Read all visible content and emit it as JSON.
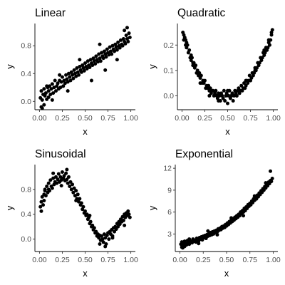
{
  "colors": {
    "background": "#ffffff",
    "point": "#000000",
    "axis": "#000000",
    "tick_text": "#4d4d4d"
  },
  "chart_data": [
    {
      "type": "scatter",
      "title": "Linear",
      "xlabel": "x",
      "ylabel": "y",
      "grid": false,
      "legend": "none",
      "xlim": [
        -0.05,
        1.05
      ],
      "ylim": [
        -0.12,
        1.12
      ],
      "xticks": [
        0.0,
        0.25,
        0.5,
        0.75,
        1.0
      ],
      "xtick_labels": [
        "0.00",
        "0.25",
        "0.50",
        "0.75",
        "1.00"
      ],
      "yticks": [
        0.0,
        0.4,
        0.8
      ],
      "ytick_labels": [
        "0.0",
        "0.4",
        "0.8"
      ],
      "series": [
        {
          "x": [
            0.01,
            0.02,
            0.02,
            0.03,
            0.04,
            0.05,
            0.05,
            0.06,
            0.07,
            0.08,
            0.09,
            0.1,
            0.1,
            0.11,
            0.12,
            0.13,
            0.14,
            0.15,
            0.16,
            0.17,
            0.18,
            0.19,
            0.2,
            0.21,
            0.22,
            0.23,
            0.24,
            0.25,
            0.26,
            0.27,
            0.28,
            0.29,
            0.3,
            0.31,
            0.32,
            0.33,
            0.34,
            0.35,
            0.36,
            0.37,
            0.38,
            0.39,
            0.4,
            0.41,
            0.42,
            0.43,
            0.44,
            0.45,
            0.46,
            0.47,
            0.48,
            0.49,
            0.5,
            0.51,
            0.52,
            0.53,
            0.54,
            0.55,
            0.56,
            0.57,
            0.58,
            0.59,
            0.6,
            0.61,
            0.62,
            0.63,
            0.64,
            0.65,
            0.66,
            0.67,
            0.68,
            0.69,
            0.7,
            0.71,
            0.72,
            0.73,
            0.74,
            0.75,
            0.76,
            0.77,
            0.78,
            0.79,
            0.8,
            0.81,
            0.82,
            0.83,
            0.84,
            0.85,
            0.86,
            0.87,
            0.88,
            0.89,
            0.9,
            0.91,
            0.92,
            0.93,
            0.94,
            0.95,
            0.96,
            0.97,
            0.98,
            0.99,
            0.03,
            0.08,
            0.14,
            0.22,
            0.31,
            0.44,
            0.57,
            0.66,
            0.72,
            0.85,
            0.93,
            0.96
          ],
          "y": [
            0.05,
            -0.08,
            0.15,
            0.02,
            0.1,
            -0.05,
            0.18,
            0.08,
            0.12,
            0.03,
            0.2,
            0.15,
            0.06,
            0.22,
            0.1,
            0.18,
            0.25,
            0.12,
            0.2,
            0.3,
            0.15,
            0.22,
            0.26,
            0.18,
            0.3,
            0.2,
            0.28,
            0.35,
            0.22,
            0.3,
            0.26,
            0.38,
            0.32,
            0.28,
            0.4,
            0.35,
            0.3,
            0.42,
            0.38,
            0.33,
            0.45,
            0.4,
            0.36,
            0.48,
            0.42,
            0.38,
            0.5,
            0.45,
            0.42,
            0.52,
            0.48,
            0.44,
            0.55,
            0.5,
            0.47,
            0.58,
            0.52,
            0.49,
            0.6,
            0.55,
            0.52,
            0.62,
            0.58,
            0.54,
            0.65,
            0.6,
            0.57,
            0.68,
            0.62,
            0.58,
            0.7,
            0.65,
            0.62,
            0.72,
            0.68,
            0.64,
            0.75,
            0.7,
            0.67,
            0.78,
            0.72,
            0.68,
            0.8,
            0.75,
            0.72,
            0.82,
            0.78,
            0.74,
            0.85,
            0.8,
            0.77,
            0.88,
            0.82,
            0.8,
            0.9,
            0.86,
            0.83,
            0.95,
            0.9,
            0.86,
            0.98,
            0.92,
            -0.1,
            0.22,
            0.02,
            0.38,
            0.15,
            0.6,
            0.3,
            0.82,
            0.45,
            0.6,
            1.02,
            1.06
          ]
        }
      ]
    },
    {
      "type": "scatter",
      "title": "Quadratic",
      "xlabel": "x",
      "ylabel": "y",
      "grid": false,
      "legend": "none",
      "xlim": [
        -0.05,
        1.05
      ],
      "ylim": [
        -0.055,
        0.285
      ],
      "xticks": [
        0.0,
        0.25,
        0.5,
        0.75,
        1.0
      ],
      "xtick_labels": [
        "0.00",
        "0.25",
        "0.50",
        "0.75",
        "1.00"
      ],
      "yticks": [
        0.0,
        0.1,
        0.2
      ],
      "ytick_labels": [
        "0.0",
        "0.1",
        "0.2"
      ],
      "series": [
        {
          "x": [
            0.01,
            0.02,
            0.02,
            0.03,
            0.04,
            0.05,
            0.05,
            0.06,
            0.07,
            0.08,
            0.09,
            0.1,
            0.1,
            0.11,
            0.12,
            0.13,
            0.14,
            0.15,
            0.16,
            0.17,
            0.18,
            0.19,
            0.2,
            0.21,
            0.22,
            0.23,
            0.24,
            0.25,
            0.26,
            0.27,
            0.28,
            0.29,
            0.3,
            0.31,
            0.32,
            0.33,
            0.34,
            0.35,
            0.36,
            0.37,
            0.38,
            0.39,
            0.4,
            0.41,
            0.42,
            0.43,
            0.44,
            0.45,
            0.46,
            0.47,
            0.48,
            0.49,
            0.5,
            0.51,
            0.52,
            0.53,
            0.54,
            0.55,
            0.56,
            0.57,
            0.58,
            0.59,
            0.6,
            0.61,
            0.62,
            0.63,
            0.64,
            0.65,
            0.66,
            0.67,
            0.68,
            0.69,
            0.7,
            0.71,
            0.72,
            0.73,
            0.74,
            0.75,
            0.76,
            0.77,
            0.78,
            0.79,
            0.8,
            0.81,
            0.82,
            0.83,
            0.84,
            0.85,
            0.86,
            0.87,
            0.88,
            0.89,
            0.9,
            0.91,
            0.92,
            0.93,
            0.94,
            0.95,
            0.96,
            0.97,
            0.98,
            0.99,
            0.04,
            0.12,
            0.2,
            0.3,
            0.4,
            0.5,
            0.6,
            0.7,
            0.8,
            0.9,
            0.95,
            0.98
          ],
          "y": [
            0.25,
            0.24,
            0.22,
            0.23,
            0.2,
            0.21,
            0.19,
            0.2,
            0.17,
            0.18,
            0.15,
            0.16,
            0.14,
            0.15,
            0.12,
            0.13,
            0.11,
            0.12,
            0.09,
            0.1,
            0.08,
            0.09,
            0.07,
            0.08,
            0.05,
            0.06,
            0.05,
            0.06,
            0.03,
            0.04,
            0.03,
            0.04,
            0.02,
            0.03,
            0.01,
            0.02,
            0.02,
            0.0,
            0.01,
            0.02,
            0.0,
            -0.01,
            0.01,
            0.0,
            -0.02,
            0.01,
            0.0,
            -0.01,
            0.02,
            -0.02,
            0.0,
            0.01,
            -0.03,
            0.0,
            0.02,
            -0.01,
            0.0,
            0.01,
            -0.02,
            0.0,
            0.02,
            0.01,
            0.0,
            0.02,
            0.03,
            0.01,
            0.02,
            0.04,
            0.02,
            0.03,
            0.05,
            0.03,
            0.04,
            0.06,
            0.05,
            0.06,
            0.08,
            0.06,
            0.07,
            0.09,
            0.08,
            0.09,
            0.11,
            0.1,
            0.11,
            0.13,
            0.12,
            0.13,
            0.15,
            0.14,
            0.15,
            0.17,
            0.16,
            0.17,
            0.19,
            0.18,
            0.19,
            0.21,
            0.2,
            0.22,
            0.24,
            0.26,
            0.22,
            0.13,
            0.05,
            0.0,
            -0.02,
            0.02,
            0.0,
            0.06,
            0.1,
            0.18,
            0.22,
            0.25
          ]
        }
      ]
    },
    {
      "type": "scatter",
      "title": "Sinusoidal",
      "xlabel": "x",
      "ylabel": "y",
      "grid": false,
      "legend": "none",
      "xlim": [
        -0.05,
        1.05
      ],
      "ylim": [
        -0.2,
        1.2
      ],
      "xticks": [
        0.0,
        0.25,
        0.5,
        0.75,
        1.0
      ],
      "xtick_labels": [
        "0.00",
        "0.25",
        "0.50",
        "0.75",
        "1.00"
      ],
      "yticks": [
        0.0,
        0.4,
        0.8
      ],
      "ytick_labels": [
        "0.0",
        "0.4",
        "0.8"
      ],
      "series": [
        {
          "x": [
            0.01,
            0.02,
            0.02,
            0.03,
            0.04,
            0.05,
            0.05,
            0.06,
            0.07,
            0.08,
            0.09,
            0.1,
            0.1,
            0.11,
            0.12,
            0.13,
            0.14,
            0.15,
            0.16,
            0.17,
            0.18,
            0.19,
            0.2,
            0.21,
            0.22,
            0.23,
            0.24,
            0.25,
            0.26,
            0.27,
            0.28,
            0.29,
            0.3,
            0.31,
            0.32,
            0.33,
            0.34,
            0.35,
            0.36,
            0.37,
            0.38,
            0.39,
            0.4,
            0.41,
            0.42,
            0.43,
            0.44,
            0.45,
            0.46,
            0.47,
            0.48,
            0.49,
            0.5,
            0.51,
            0.52,
            0.53,
            0.54,
            0.55,
            0.56,
            0.57,
            0.58,
            0.59,
            0.6,
            0.61,
            0.62,
            0.63,
            0.64,
            0.65,
            0.66,
            0.67,
            0.68,
            0.69,
            0.7,
            0.71,
            0.72,
            0.73,
            0.74,
            0.75,
            0.76,
            0.77,
            0.78,
            0.79,
            0.8,
            0.81,
            0.82,
            0.83,
            0.84,
            0.85,
            0.86,
            0.87,
            0.88,
            0.89,
            0.9,
            0.91,
            0.92,
            0.93,
            0.94,
            0.95,
            0.96,
            0.97,
            0.98,
            0.99,
            0.06,
            0.15,
            0.24,
            0.3,
            0.4,
            0.55,
            0.66,
            0.72,
            0.8,
            0.93
          ],
          "y": [
            0.52,
            0.45,
            0.6,
            0.68,
            0.55,
            0.72,
            0.62,
            0.78,
            0.7,
            0.85,
            0.75,
            0.8,
            0.9,
            0.78,
            0.95,
            0.85,
            0.82,
            0.98,
            0.88,
            0.92,
            1.0,
            0.9,
            0.96,
            1.05,
            0.92,
            1.0,
            0.95,
            1.08,
            0.98,
            1.02,
            0.94,
            1.06,
            0.96,
            0.9,
            1.0,
            0.85,
            0.92,
            0.8,
            0.88,
            0.75,
            0.82,
            0.7,
            0.78,
            0.65,
            0.72,
            0.6,
            0.65,
            0.55,
            0.58,
            0.48,
            0.52,
            0.42,
            0.45,
            0.38,
            0.4,
            0.32,
            0.35,
            0.25,
            0.28,
            0.2,
            0.22,
            0.15,
            0.18,
            0.1,
            0.12,
            0.05,
            0.08,
            0.02,
            0.06,
            -0.02,
            0.05,
            0.0,
            -0.05,
            0.08,
            0.02,
            -0.08,
            0.06,
            0.1,
            0.0,
            0.12,
            0.08,
            0.15,
            0.05,
            0.18,
            0.12,
            0.2,
            0.16,
            0.25,
            0.2,
            0.28,
            0.24,
            0.32,
            0.28,
            0.36,
            0.3,
            0.4,
            0.35,
            0.42,
            0.38,
            0.45,
            0.4,
            0.35,
            0.8,
            1.06,
            0.86,
            1.12,
            0.62,
            0.38,
            -0.08,
            -0.12,
            0.02,
            0.22
          ]
        }
      ]
    },
    {
      "type": "scatter",
      "title": "Exponential",
      "xlabel": "x",
      "ylabel": "y",
      "grid": false,
      "legend": "none",
      "xlim": [
        -0.05,
        1.05
      ],
      "ylim": [
        0.6,
        12.5
      ],
      "xticks": [
        0.0,
        0.25,
        0.5,
        0.75,
        1.0
      ],
      "xtick_labels": [
        "0.00",
        "0.25",
        "0.50",
        "0.75",
        "1.00"
      ],
      "yticks": [
        3,
        6,
        9,
        12
      ],
      "ytick_labels": [
        "3",
        "6",
        "9",
        "12"
      ],
      "series": [
        {
          "x": [
            0.01,
            0.02,
            0.02,
            0.03,
            0.04,
            0.05,
            0.05,
            0.06,
            0.07,
            0.08,
            0.09,
            0.1,
            0.1,
            0.11,
            0.12,
            0.13,
            0.14,
            0.15,
            0.16,
            0.17,
            0.18,
            0.19,
            0.2,
            0.21,
            0.22,
            0.23,
            0.24,
            0.25,
            0.26,
            0.27,
            0.28,
            0.29,
            0.3,
            0.31,
            0.32,
            0.33,
            0.34,
            0.35,
            0.36,
            0.37,
            0.38,
            0.39,
            0.4,
            0.41,
            0.42,
            0.43,
            0.44,
            0.45,
            0.46,
            0.47,
            0.48,
            0.49,
            0.5,
            0.51,
            0.52,
            0.53,
            0.54,
            0.55,
            0.56,
            0.57,
            0.58,
            0.59,
            0.6,
            0.61,
            0.62,
            0.63,
            0.64,
            0.65,
            0.66,
            0.67,
            0.68,
            0.69,
            0.7,
            0.71,
            0.72,
            0.73,
            0.74,
            0.75,
            0.76,
            0.77,
            0.78,
            0.79,
            0.8,
            0.81,
            0.82,
            0.83,
            0.84,
            0.85,
            0.86,
            0.87,
            0.88,
            0.89,
            0.9,
            0.91,
            0.92,
            0.93,
            0.94,
            0.95,
            0.96,
            0.97,
            0.98,
            0.99,
            0.03,
            0.1,
            0.2,
            0.3,
            0.4,
            0.55,
            0.68,
            0.8,
            0.92,
            0.97
          ],
          "y": [
            1.6,
            1.2,
            1.9,
            1.5,
            1.8,
            1.3,
            2.0,
            1.7,
            1.5,
            2.1,
            1.8,
            1.6,
            2.2,
            1.9,
            2.0,
            1.8,
            2.3,
            2.0,
            2.1,
            1.9,
            2.4,
            2.2,
            2.0,
            2.5,
            2.3,
            2.6,
            2.2,
            2.7,
            2.5,
            2.8,
            2.4,
            2.9,
            2.7,
            3.0,
            2.8,
            3.2,
            2.9,
            3.3,
            3.0,
            3.4,
            3.2,
            3.5,
            3.3,
            3.7,
            3.5,
            3.8,
            3.6,
            4.0,
            3.8,
            4.1,
            3.9,
            4.3,
            4.1,
            4.5,
            4.3,
            4.7,
            4.5,
            4.9,
            4.7,
            5.1,
            4.9,
            5.3,
            5.1,
            5.5,
            5.3,
            5.7,
            5.5,
            6.0,
            5.8,
            6.2,
            6.0,
            6.5,
            6.2,
            6.7,
            6.5,
            7.0,
            6.8,
            7.2,
            7.0,
            7.5,
            7.3,
            7.8,
            7.6,
            8.0,
            7.8,
            8.3,
            8.1,
            8.6,
            8.4,
            8.9,
            8.7,
            9.2,
            9.0,
            9.5,
            9.3,
            9.8,
            9.6,
            10.1,
            9.9,
            10.3,
            10.2,
            10.6,
            1.1,
            2.3,
            1.7,
            3.4,
            2.9,
            5.2,
            5.5,
            8.2,
            10.0,
            11.6
          ]
        }
      ]
    }
  ]
}
